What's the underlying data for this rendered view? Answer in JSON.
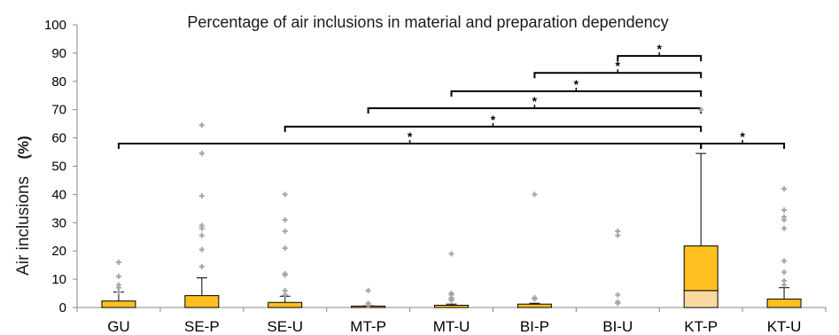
{
  "chart_data": {
    "type": "box",
    "title": "Percentage of air inclusions in material and preparation dependency",
    "ylabel": "Air inclusions",
    "yunit": "(%)",
    "ylim": [
      0,
      100
    ],
    "yticks": [
      0,
      10,
      20,
      30,
      40,
      50,
      60,
      70,
      80,
      90,
      100
    ],
    "grid": false,
    "categories": [
      "GU",
      "SE-P",
      "SE-U",
      "MT-P",
      "MT-U",
      "BI-P",
      "BI-U",
      "KT-P",
      "KT-U"
    ],
    "boxes": [
      {
        "q1": 0,
        "median": 0,
        "q3": 2.3,
        "whisker_high": 5.5,
        "outliers": [
          16,
          11,
          8,
          7,
          5.5
        ]
      },
      {
        "q1": 0,
        "median": 0,
        "q3": 4.2,
        "whisker_high": 10.5,
        "outliers": [
          64.5,
          54.5,
          39.5,
          29,
          28,
          25.5,
          20.5,
          14.5
        ]
      },
      {
        "q1": 0,
        "median": 0,
        "q3": 1.8,
        "whisker_high": 4,
        "outliers": [
          40,
          31,
          27,
          21,
          12,
          11.5,
          6,
          4.5
        ]
      },
      {
        "q1": 0,
        "median": 0,
        "q3": 0.5,
        "whisker_high": 0.6,
        "outliers": [
          6,
          1.5,
          0.8
        ]
      },
      {
        "q1": 0,
        "median": 0,
        "q3": 0.8,
        "whisker_high": 1.2,
        "outliers": [
          19,
          5,
          4.5,
          3.5,
          3,
          2.5
        ]
      },
      {
        "q1": 0,
        "median": 0,
        "q3": 1.2,
        "whisker_high": 1.5,
        "outliers": [
          40,
          3.5,
          3
        ]
      },
      {
        "q1": 0,
        "median": 0,
        "q3": 0,
        "whisker_high": 0,
        "outliers": [
          27,
          25.5,
          4.5,
          2,
          1.5
        ]
      },
      {
        "q1": 0,
        "median": 6,
        "q3": 21.8,
        "whisker_high": 54.5,
        "outliers": [
          70
        ]
      },
      {
        "q1": 0,
        "median": 0,
        "q3": 3,
        "whisker_high": 7,
        "outliers": [
          42,
          34.5,
          32,
          31,
          28,
          16.5,
          12.5,
          9.5,
          8
        ]
      }
    ],
    "significance": [
      {
        "from": "BI-U",
        "to": "KT-P",
        "y": 89,
        "label": "*"
      },
      {
        "from": "BI-P",
        "to": "KT-P",
        "y": 83,
        "label": "*"
      },
      {
        "from": "MT-U",
        "to": "KT-P",
        "y": 76.5,
        "label": "*"
      },
      {
        "from": "MT-P",
        "to": "KT-P",
        "y": 70.5,
        "label": "*"
      },
      {
        "from": "SE-U",
        "to": "KT-P",
        "y": 64,
        "label": "*"
      },
      {
        "from": "GU",
        "to": "KT-P",
        "y": 58,
        "label": "*"
      },
      {
        "from": "KT-P",
        "to": "KT-U",
        "y": 58,
        "label": "*"
      }
    ],
    "colors": {
      "box_fill": "#ffc01f",
      "box_lower_fill": "#fdd9a2",
      "box_stroke": "#000000",
      "outlier": "#a6a6a6",
      "axis": "#888888",
      "bracket": "#000000"
    }
  }
}
